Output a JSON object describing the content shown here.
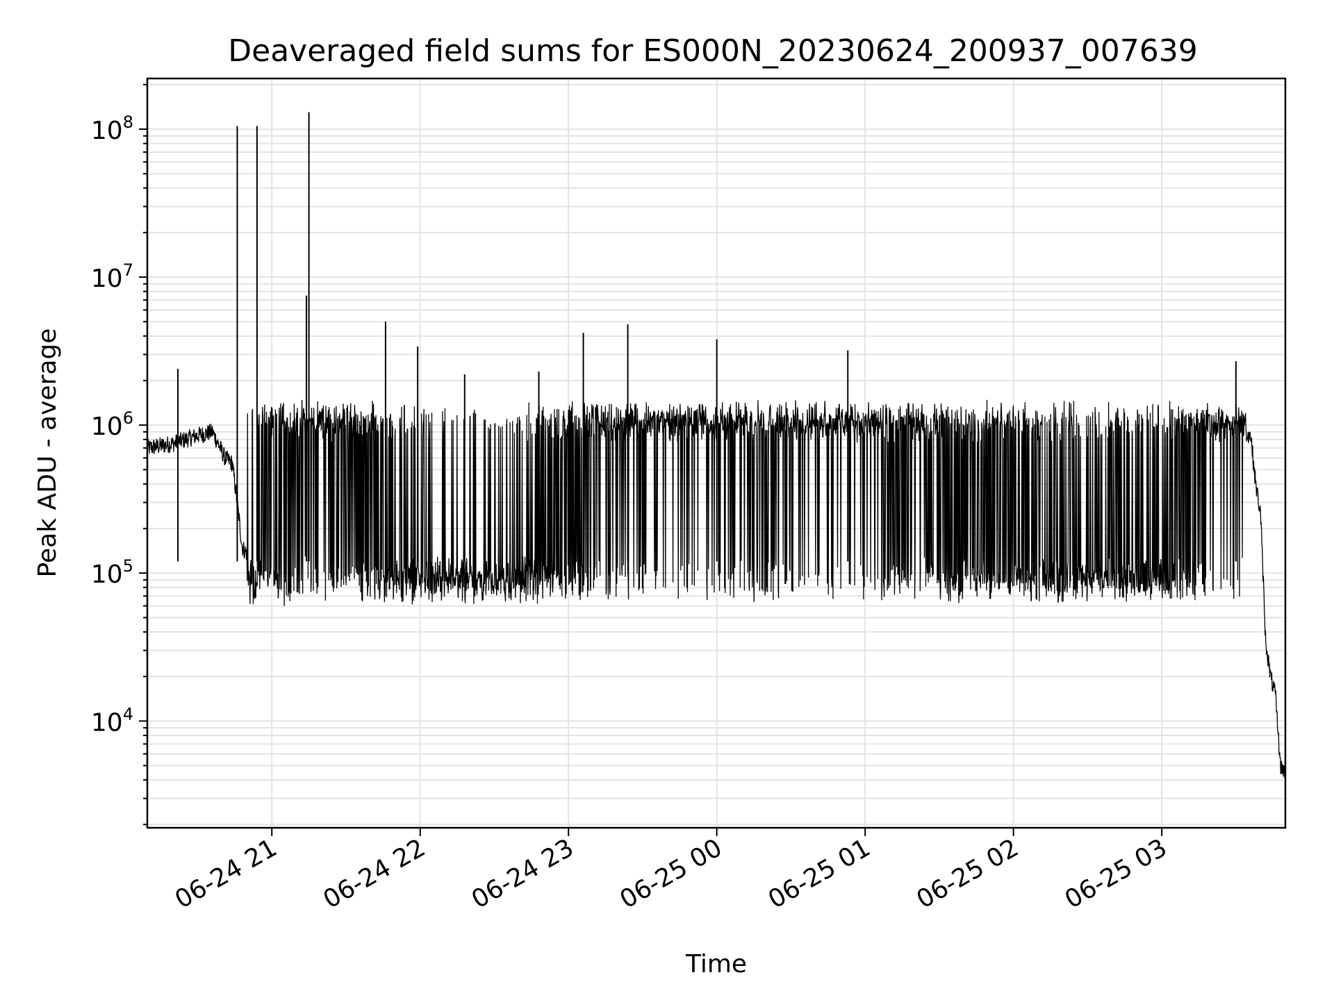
{
  "chart_data": {
    "type": "line",
    "title": "Deaveraged field sums for ES000N_20230624_200937_007639",
    "xlabel": "Time",
    "ylabel": "Peak ADU - average",
    "y_scale": "log",
    "ylim": [
      1900,
      220000000
    ],
    "xlim": [
      "2023-06-24 20:09:37",
      "2023-06-25 03:50:00"
    ],
    "grid": true,
    "grid_minor_y": true,
    "line_color": "#000000",
    "x_ticks": [
      {
        "value": "2023-06-24 21:00",
        "label": "06-24 21"
      },
      {
        "value": "2023-06-24 22:00",
        "label": "06-24 22"
      },
      {
        "value": "2023-06-24 23:00",
        "label": "06-24 23"
      },
      {
        "value": "2023-06-25 00:00",
        "label": "06-25 00"
      },
      {
        "value": "2023-06-25 01:00",
        "label": "06-25 01"
      },
      {
        "value": "2023-06-25 02:00",
        "label": "06-25 02"
      },
      {
        "value": "2023-06-25 03:00",
        "label": "06-25 03"
      }
    ],
    "y_ticks": [
      {
        "value": 10000,
        "base": "10",
        "exp": "4"
      },
      {
        "value": 100000,
        "base": "10",
        "exp": "5"
      },
      {
        "value": 1000000,
        "base": "10",
        "exp": "6"
      },
      {
        "value": 10000000,
        "base": "10",
        "exp": "7"
      },
      {
        "value": 100000000,
        "base": "10",
        "exp": "8"
      }
    ],
    "series": [
      {
        "x": [
          "2023-06-24 20:10",
          "2023-06-24 20:20",
          "2023-06-24 20:30",
          "2023-06-24 20:36",
          "2023-06-24 20:41",
          "2023-06-24 20:44",
          "2023-06-24 20:46",
          "2023-06-24 20:48",
          "2023-06-24 20:52",
          "2023-06-24 20:56",
          "2023-06-24 21:00",
          "2023-06-24 21:10",
          "2023-06-24 21:20",
          "2023-06-24 21:40",
          "2023-06-24 22:00",
          "2023-06-24 22:20",
          "2023-06-24 22:40",
          "2023-06-24 23:00",
          "2023-06-24 23:30",
          "2023-06-25 00:00",
          "2023-06-25 00:30",
          "2023-06-25 01:00",
          "2023-06-25 01:30",
          "2023-06-25 02:00",
          "2023-06-25 02:30",
          "2023-06-25 03:00",
          "2023-06-25 03:10",
          "2023-06-25 03:20",
          "2023-06-25 03:28",
          "2023-06-25 03:33",
          "2023-06-25 03:36",
          "2023-06-25 03:38",
          "2023-06-25 03:40",
          "2023-06-25 03:42",
          "2023-06-25 03:44",
          "2023-06-25 03:46",
          "2023-06-25 03:48",
          "2023-06-25 03:50"
        ],
        "y": [
          700000,
          750000,
          850000,
          900000,
          600000,
          550000,
          300000,
          150000,
          120000,
          200000,
          300000,
          500000,
          600000,
          300000,
          150000,
          100000,
          100000,
          300000,
          600000,
          900000,
          800000,
          600000,
          400000,
          250000,
          200000,
          150000,
          300000,
          600000,
          1200000,
          900000,
          850000,
          400000,
          250000,
          35000,
          20000,
          15000,
          5000,
          4500
        ]
      }
    ],
    "spikes": [
      {
        "x": "2023-06-24 20:46",
        "y": 105000000
      },
      {
        "x": "2023-06-24 20:54",
        "y": 105000000
      },
      {
        "x": "2023-06-24 21:15",
        "y": 130000000
      },
      {
        "x": "2023-06-24 21:14",
        "y": 7500000
      },
      {
        "x": "2023-06-24 21:46",
        "y": 5000000
      },
      {
        "x": "2023-06-24 21:59",
        "y": 3400000
      },
      {
        "x": "2023-06-24 23:06",
        "y": 4200000
      },
      {
        "x": "2023-06-24 23:24",
        "y": 4800000
      },
      {
        "x": "2023-06-25 00:00",
        "y": 3800000
      },
      {
        "x": "2023-06-25 00:53",
        "y": 3200000
      },
      {
        "x": "2023-06-25 03:30",
        "y": 2700000
      },
      {
        "x": "2023-06-24 20:22",
        "y": 2400000
      },
      {
        "x": "2023-06-24 22:48",
        "y": 2300000
      },
      {
        "x": "2023-06-24 22:18",
        "y": 2200000
      }
    ]
  }
}
